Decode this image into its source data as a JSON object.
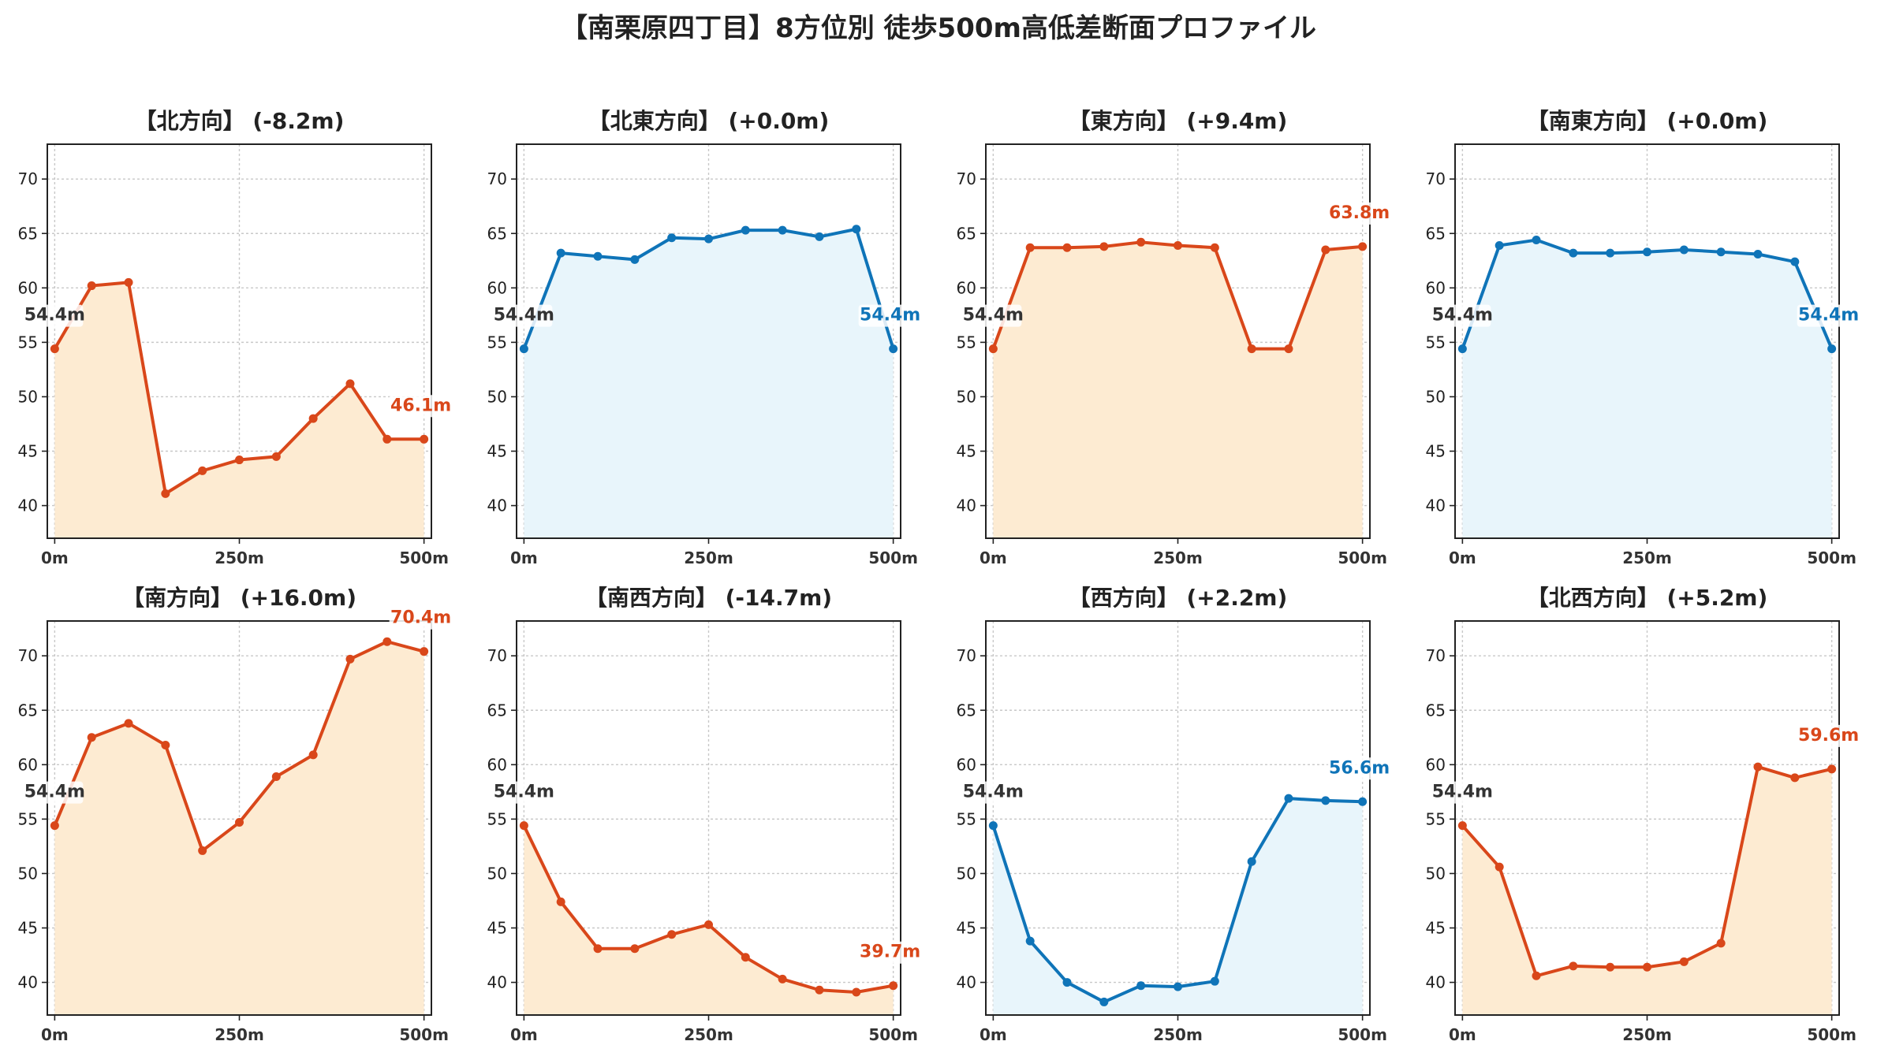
{
  "title": "【南栗原四丁目】8方位別 徒歩500m高低差断面プロファイル",
  "colors": {
    "down_line": "#d9471a",
    "down_fill": "#fdebd2",
    "up_line": "#0f74b8",
    "up_fill": "#e8f5fb",
    "start_label": "#333333",
    "grid": "#c8c8c8",
    "axis": "#222222"
  },
  "chart_data": [
    {
      "type": "area",
      "title": "【北方向】 (-8.2m)",
      "x": [
        0,
        50,
        100,
        150,
        200,
        250,
        300,
        350,
        400,
        450,
        500
      ],
      "y": [
        54.4,
        60.2,
        60.5,
        41.1,
        43.2,
        44.2,
        44.5,
        48.0,
        51.2,
        46.1,
        46.1
      ],
      "xticks": [
        "0m",
        "250m",
        "500m"
      ],
      "yticks": [
        40,
        45,
        50,
        55,
        60,
        65,
        70
      ],
      "xlim": [
        -10,
        510
      ],
      "ylim": [
        37,
        73.2
      ],
      "start_label": "54.4m",
      "end_label": "46.1m",
      "color_scheme": "down",
      "grid": true
    },
    {
      "type": "area",
      "title": "【北東方向】 (+0.0m)",
      "x": [
        0,
        50,
        100,
        150,
        200,
        250,
        300,
        350,
        400,
        450,
        500
      ],
      "y": [
        54.4,
        63.2,
        62.9,
        62.6,
        64.6,
        64.5,
        65.3,
        65.3,
        64.7,
        65.4,
        54.4
      ],
      "xticks": [
        "0m",
        "250m",
        "500m"
      ],
      "yticks": [
        40,
        45,
        50,
        55,
        60,
        65,
        70
      ],
      "xlim": [
        -10,
        510
      ],
      "ylim": [
        37,
        73.2
      ],
      "start_label": "54.4m",
      "end_label": "54.4m",
      "color_scheme": "up",
      "grid": true
    },
    {
      "type": "area",
      "title": "【東方向】 (+9.4m)",
      "x": [
        0,
        50,
        100,
        150,
        200,
        250,
        300,
        350,
        400,
        450,
        500
      ],
      "y": [
        54.4,
        63.7,
        63.7,
        63.8,
        64.2,
        63.9,
        63.7,
        54.4,
        54.4,
        63.5,
        63.8
      ],
      "xticks": [
        "0m",
        "250m",
        "500m"
      ],
      "yticks": [
        40,
        45,
        50,
        55,
        60,
        65,
        70
      ],
      "xlim": [
        -10,
        510
      ],
      "ylim": [
        37,
        73.2
      ],
      "start_label": "54.4m",
      "end_label": "63.8m",
      "color_scheme": "down",
      "grid": true
    },
    {
      "type": "area",
      "title": "【南東方向】 (+0.0m)",
      "x": [
        0,
        50,
        100,
        150,
        200,
        250,
        300,
        350,
        400,
        450,
        500
      ],
      "y": [
        54.4,
        63.9,
        64.4,
        63.2,
        63.2,
        63.3,
        63.5,
        63.3,
        63.1,
        62.4,
        54.4
      ],
      "xticks": [
        "0m",
        "250m",
        "500m"
      ],
      "yticks": [
        40,
        45,
        50,
        55,
        60,
        65,
        70
      ],
      "xlim": [
        -10,
        510
      ],
      "ylim": [
        37,
        73.2
      ],
      "start_label": "54.4m",
      "end_label": "54.4m",
      "color_scheme": "up",
      "grid": true
    },
    {
      "type": "area",
      "title": "【南方向】 (+16.0m)",
      "x": [
        0,
        50,
        100,
        150,
        200,
        250,
        300,
        350,
        400,
        450,
        500
      ],
      "y": [
        54.4,
        62.5,
        63.8,
        61.8,
        52.1,
        54.7,
        58.9,
        60.9,
        69.7,
        71.3,
        70.4
      ],
      "xticks": [
        "0m",
        "250m",
        "500m"
      ],
      "yticks": [
        40,
        45,
        50,
        55,
        60,
        65,
        70
      ],
      "xlim": [
        -10,
        510
      ],
      "ylim": [
        37,
        73.2
      ],
      "start_label": "54.4m",
      "end_label": "70.4m",
      "color_scheme": "down",
      "grid": true
    },
    {
      "type": "area",
      "title": "【南西方向】 (-14.7m)",
      "x": [
        0,
        50,
        100,
        150,
        200,
        250,
        300,
        350,
        400,
        450,
        500
      ],
      "y": [
        54.4,
        47.4,
        43.1,
        43.1,
        44.4,
        45.3,
        42.3,
        40.3,
        39.3,
        39.1,
        39.7
      ],
      "xticks": [
        "0m",
        "250m",
        "500m"
      ],
      "yticks": [
        40,
        45,
        50,
        55,
        60,
        65,
        70
      ],
      "xlim": [
        -10,
        510
      ],
      "ylim": [
        37,
        73.2
      ],
      "start_label": "54.4m",
      "end_label": "39.7m",
      "color_scheme": "down",
      "grid": true
    },
    {
      "type": "area",
      "title": "【西方向】 (+2.2m)",
      "x": [
        0,
        50,
        100,
        150,
        200,
        250,
        300,
        350,
        400,
        450,
        500
      ],
      "y": [
        54.4,
        43.8,
        40.0,
        38.2,
        39.7,
        39.6,
        40.1,
        51.1,
        56.9,
        56.7,
        56.6
      ],
      "xticks": [
        "0m",
        "250m",
        "500m"
      ],
      "yticks": [
        40,
        45,
        50,
        55,
        60,
        65,
        70
      ],
      "xlim": [
        -10,
        510
      ],
      "ylim": [
        37,
        73.2
      ],
      "start_label": "54.4m",
      "end_label": "56.6m",
      "color_scheme": "up",
      "grid": true
    },
    {
      "type": "area",
      "title": "【北西方向】 (+5.2m)",
      "x": [
        0,
        50,
        100,
        150,
        200,
        250,
        300,
        350,
        400,
        450,
        500
      ],
      "y": [
        54.4,
        50.6,
        40.6,
        41.5,
        41.4,
        41.4,
        41.9,
        43.6,
        59.8,
        58.8,
        59.6
      ],
      "xticks": [
        "0m",
        "250m",
        "500m"
      ],
      "yticks": [
        40,
        45,
        50,
        55,
        60,
        65,
        70
      ],
      "xlim": [
        -10,
        510
      ],
      "ylim": [
        37,
        73.2
      ],
      "start_label": "54.4m",
      "end_label": "59.6m",
      "color_scheme": "down",
      "grid": true
    }
  ]
}
